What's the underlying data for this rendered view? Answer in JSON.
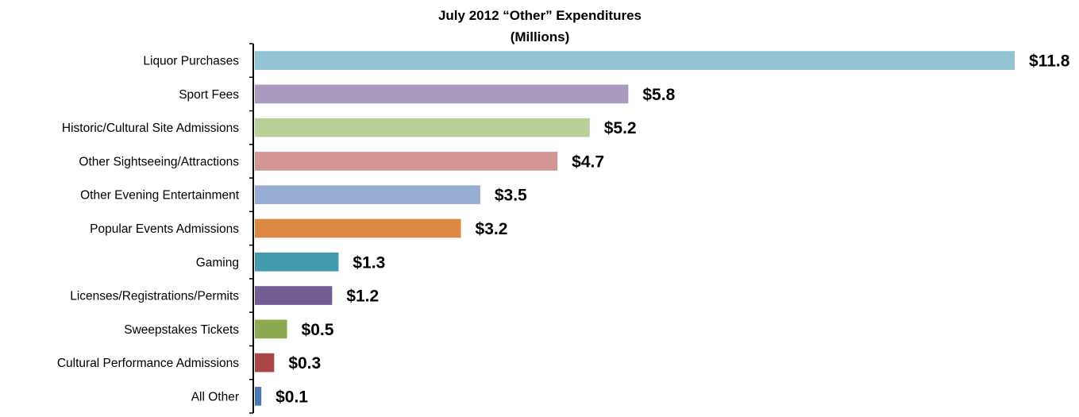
{
  "chart_data": {
    "type": "bar",
    "orientation": "horizontal",
    "title": "July 2012 “Other” Expenditures",
    "subtitle": "(Millions)",
    "xlabel": "",
    "ylabel": "",
    "xlim": [
      0,
      11.8
    ],
    "grid": false,
    "legend": "none",
    "categories": [
      "Liquor Purchases",
      "Sport Fees",
      "Historic/Cultural Site Admissions",
      "Other Sightseeing/Attractions",
      "Other Evening Entertainment",
      "Popular Events Admissions",
      "Gaming",
      "Licenses/Registrations/Permits",
      "Sweepstakes Tickets",
      "Cultural Performance Admissions",
      "All Other"
    ],
    "values": [
      11.8,
      5.8,
      5.2,
      4.7,
      3.5,
      3.2,
      1.3,
      1.2,
      0.5,
      0.3,
      0.1
    ],
    "value_labels": [
      "$11.8",
      "$5.8",
      "$5.2",
      "$4.7",
      "$3.5",
      "$3.2",
      "$1.3",
      "$1.2",
      "$0.5",
      "$0.3",
      "$0.1"
    ],
    "colors": [
      "#93C4D5",
      "#A99BC0",
      "#B8CF98",
      "#D49595",
      "#97ADD3",
      "#DC8843",
      "#4399AD",
      "#735C92",
      "#8CA952",
      "#AC4646",
      "#4B78B4"
    ]
  }
}
